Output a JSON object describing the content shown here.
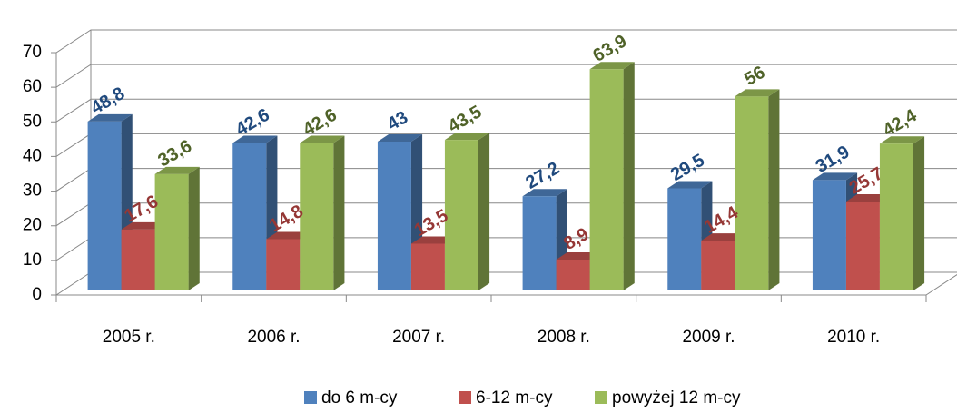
{
  "chart_data": {
    "type": "bar3d",
    "categories": [
      "2005 r.",
      "2006 r.",
      "2007 r.",
      "2008 r.",
      "2009 r.",
      "2010 r."
    ],
    "series": [
      {
        "name": "do 6 m-cy",
        "color": "#4f81bd",
        "label_color": "#1f497d",
        "values": [
          48.8,
          42.6,
          43,
          27.2,
          29.5,
          31.9
        ],
        "value_labels": [
          "48,8",
          "42,6",
          "43",
          "27,2",
          "29,5",
          "31,9"
        ]
      },
      {
        "name": "6-12 m-cy",
        "color": "#c0504d",
        "label_color": "#953735",
        "values": [
          17.6,
          14.8,
          13.5,
          8.9,
          14.4,
          25.7
        ],
        "value_labels": [
          "17,6",
          "14,8",
          "13,5",
          "8,9",
          "14,4",
          "25,7"
        ]
      },
      {
        "name": "powyżej 12 m-cy",
        "color": "#9bbb59",
        "label_color": "#4f6228",
        "values": [
          33.6,
          42.6,
          43.5,
          63.9,
          56,
          42.4
        ],
        "value_labels": [
          "33,6",
          "42,6",
          "43,5",
          "63,9",
          "56",
          "42,4"
        ]
      }
    ],
    "ylim": [
      0,
      70
    ],
    "yticks": [
      0,
      10,
      20,
      30,
      40,
      50,
      60,
      70
    ],
    "grid": true,
    "legend": "bottom"
  }
}
